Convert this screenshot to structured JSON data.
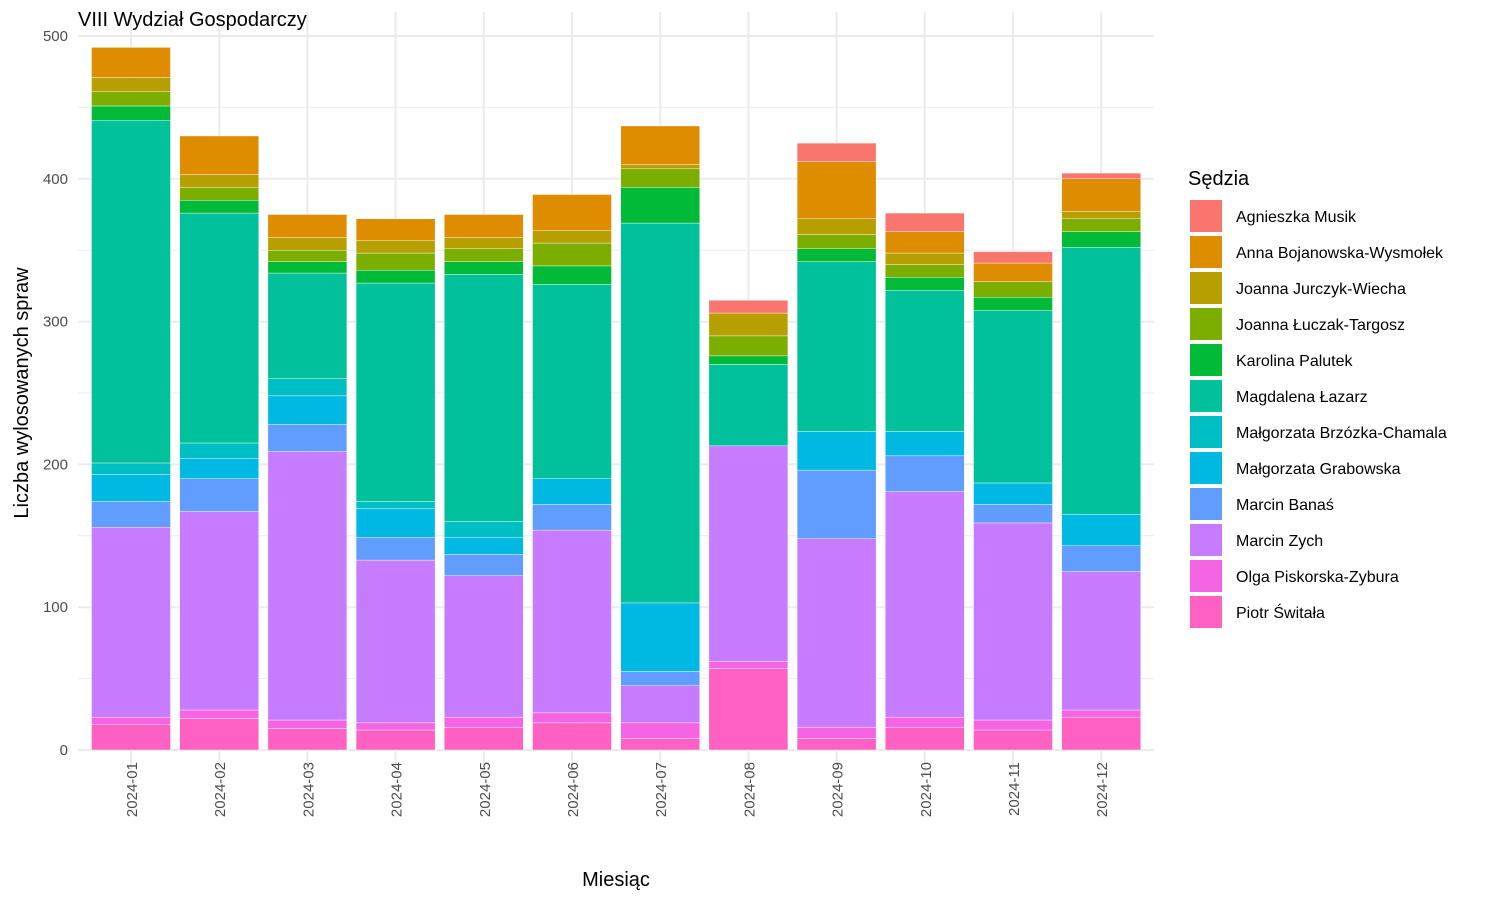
{
  "chart_data": {
    "type": "bar",
    "stacked": true,
    "title": "VIII Wydział Gospodarczy",
    "xlabel": "Miesiąc",
    "ylabel": "Liczba wylosowanych spraw",
    "ylim": [
      0,
      500
    ],
    "yticks": [
      0,
      100,
      200,
      300,
      400,
      500
    ],
    "grid": true,
    "legend_title": "Sędzia",
    "legend_position": "right",
    "categories": [
      "2024-01",
      "2024-02",
      "2024-03",
      "2024-04",
      "2024-05",
      "2024-06",
      "2024-07",
      "2024-08",
      "2024-09",
      "2024-10",
      "2024-11",
      "2024-12"
    ],
    "series": [
      {
        "name": "Piotr Świtała",
        "color": "#FF61C3",
        "values": [
          18,
          22,
          15,
          14,
          16,
          19,
          8,
          57,
          8,
          16,
          14,
          23
        ]
      },
      {
        "name": "Olga Piskorska-Zybura",
        "color": "#F564E3",
        "values": [
          5,
          6,
          6,
          5,
          7,
          7,
          11,
          5,
          8,
          7,
          7,
          5
        ]
      },
      {
        "name": "Marcin Zych",
        "color": "#C77CFF",
        "values": [
          133,
          139,
          188,
          114,
          99,
          128,
          26,
          151,
          132,
          158,
          138,
          97
        ]
      },
      {
        "name": "Marcin Banaś",
        "color": "#619CFF",
        "values": [
          18,
          23,
          19,
          16,
          15,
          18,
          10,
          0,
          48,
          25,
          13,
          18
        ]
      },
      {
        "name": "Małgorzata Grabowska",
        "color": "#00B9E3",
        "values": [
          19,
          14,
          20,
          20,
          12,
          18,
          48,
          0,
          27,
          17,
          15,
          22
        ]
      },
      {
        "name": "Małgorzata Brzózka-Chamala",
        "color": "#00BFC4",
        "values": [
          8,
          11,
          12,
          5,
          11,
          0,
          0,
          0,
          0,
          0,
          0,
          0
        ]
      },
      {
        "name": "Magdalena Łazarz",
        "color": "#00C19A",
        "values": [
          240,
          161,
          74,
          153,
          173,
          136,
          266,
          57,
          119,
          99,
          121,
          187
        ]
      },
      {
        "name": "Karolina Palutek",
        "color": "#00BA38",
        "values": [
          10,
          9,
          8,
          9,
          9,
          13,
          25,
          6,
          9,
          9,
          9,
          11
        ]
      },
      {
        "name": "Joanna Łuczak-Targosz",
        "color": "#7CAE00",
        "values": [
          10,
          9,
          8,
          12,
          9,
          16,
          13,
          14,
          10,
          9,
          11,
          9
        ]
      },
      {
        "name": "Joanna Jurczyk-Wiecha",
        "color": "#B79F00",
        "values": [
          10,
          9,
          9,
          9,
          8,
          9,
          3,
          16,
          11,
          8,
          0,
          5
        ]
      },
      {
        "name": "Anna Bojanowska-Wysmołek",
        "color": "#DE8C00",
        "values": [
          21,
          27,
          16,
          15,
          16,
          25,
          27,
          0,
          40,
          15,
          13,
          23
        ]
      },
      {
        "name": "Agnieszka Musik",
        "color": "#F8766D",
        "values": [
          0,
          0,
          0,
          0,
          0,
          0,
          0,
          9,
          13,
          13,
          8,
          4
        ]
      }
    ],
    "legend_order": [
      "Agnieszka Musik",
      "Anna Bojanowska-Wysmołek",
      "Joanna Jurczyk-Wiecha",
      "Joanna Łuczak-Targosz",
      "Karolina Palutek",
      "Magdalena Łazarz",
      "Małgorzata Brzózka-Chamala",
      "Małgorzata Grabowska",
      "Marcin Banaś",
      "Marcin Zych",
      "Olga Piskorska-Zybura",
      "Piotr Świtała"
    ]
  }
}
